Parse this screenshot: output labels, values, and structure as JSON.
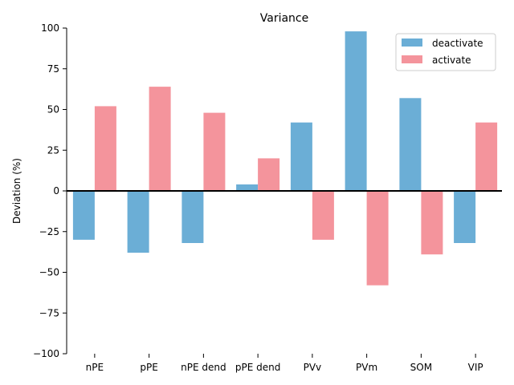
{
  "chart_data": {
    "type": "bar",
    "title": "Variance",
    "xlabel": "",
    "ylabel": "Deviation (%)",
    "ylim": [
      -100,
      100
    ],
    "yticks": [
      -100,
      -75,
      -50,
      -25,
      0,
      25,
      50,
      75,
      100
    ],
    "categories": [
      "nPE",
      "pPE",
      "nPE dend",
      "pPE dend",
      "PVv",
      "PVm",
      "SOM",
      "VIP"
    ],
    "series": [
      {
        "name": "deactivate",
        "color": "#6baed6",
        "values": [
          -30,
          -38,
          -32,
          4,
          42,
          98,
          57,
          -32
        ]
      },
      {
        "name": "activate",
        "color": "#f4949c",
        "values": [
          52,
          64,
          48,
          20,
          -30,
          -58,
          -39,
          42
        ]
      }
    ],
    "legend": "top-right",
    "grid": false
  }
}
